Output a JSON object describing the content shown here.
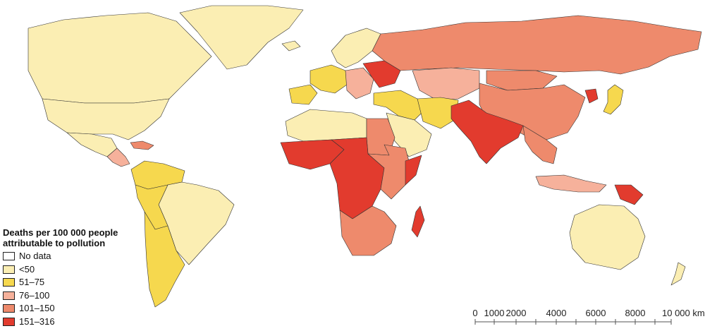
{
  "legend": {
    "title_line1": "Deaths per 100 000 people",
    "title_line2": "attributable to pollution",
    "items": [
      {
        "label": "No data",
        "color": "#ffffff"
      },
      {
        "label": "<50",
        "color": "#fbeeb3"
      },
      {
        "label": "51–75",
        "color": "#f6d84e"
      },
      {
        "label": "76–100",
        "color": "#f6b19b"
      },
      {
        "label": "101–150",
        "color": "#ee8a6c"
      },
      {
        "label": "151–316",
        "color": "#e23b2e"
      }
    ]
  },
  "scale_bar": {
    "ticks": [
      "0",
      "1000",
      "2000",
      "4000",
      "6000",
      "8000",
      "10 000 km"
    ]
  },
  "regions": [
    {
      "name": "greenland",
      "category": "<50"
    },
    {
      "name": "canada",
      "category": "<50"
    },
    {
      "name": "usa",
      "category": "<50"
    },
    {
      "name": "mexico",
      "category": "<50"
    },
    {
      "name": "central-america",
      "category": "76–100"
    },
    {
      "name": "caribbean",
      "category": "101–150"
    },
    {
      "name": "colombia-venezuela",
      "category": "51–75"
    },
    {
      "name": "brazil",
      "category": "<50"
    },
    {
      "name": "peru-bolivia",
      "category": "51–75"
    },
    {
      "name": "chile-argentina",
      "category": "51–75"
    },
    {
      "name": "iceland",
      "category": "<50"
    },
    {
      "name": "scandinavia",
      "category": "<50"
    },
    {
      "name": "western-europe",
      "category": "51–75"
    },
    {
      "name": "iberia",
      "category": "51–75"
    },
    {
      "name": "central-europe",
      "category": "76–100"
    },
    {
      "name": "eastern-europe",
      "category": "151–316"
    },
    {
      "name": "russia",
      "category": "101–150"
    },
    {
      "name": "kazakhstan-central-asia",
      "category": "76–100"
    },
    {
      "name": "turkey-middle-east",
      "category": "51–75"
    },
    {
      "name": "arabia",
      "category": "<50"
    },
    {
      "name": "iran-afghanistan",
      "category": "51–75"
    },
    {
      "name": "pakistan-india",
      "category": "151–316"
    },
    {
      "name": "china",
      "category": "101–150"
    },
    {
      "name": "mongolia",
      "category": "101–150"
    },
    {
      "name": "north-korea",
      "category": "151–316"
    },
    {
      "name": "japan",
      "category": "51–75"
    },
    {
      "name": "southeast-asia",
      "category": "101–150"
    },
    {
      "name": "indonesia",
      "category": "76–100"
    },
    {
      "name": "papua-new-guinea",
      "category": "151–316"
    },
    {
      "name": "australia",
      "category": "<50"
    },
    {
      "name": "new-zealand",
      "category": "<50"
    },
    {
      "name": "north-africa",
      "category": "<50"
    },
    {
      "name": "egypt-sudan",
      "category": "101–150"
    },
    {
      "name": "west-africa",
      "category": "151–316"
    },
    {
      "name": "central-africa",
      "category": "151–316"
    },
    {
      "name": "east-africa",
      "category": "101–150"
    },
    {
      "name": "somalia",
      "category": "151–316"
    },
    {
      "name": "southern-africa",
      "category": "101–150"
    },
    {
      "name": "madagascar",
      "category": "151–316"
    },
    {
      "name": "antarctic-unmapped",
      "category": "No data"
    }
  ]
}
